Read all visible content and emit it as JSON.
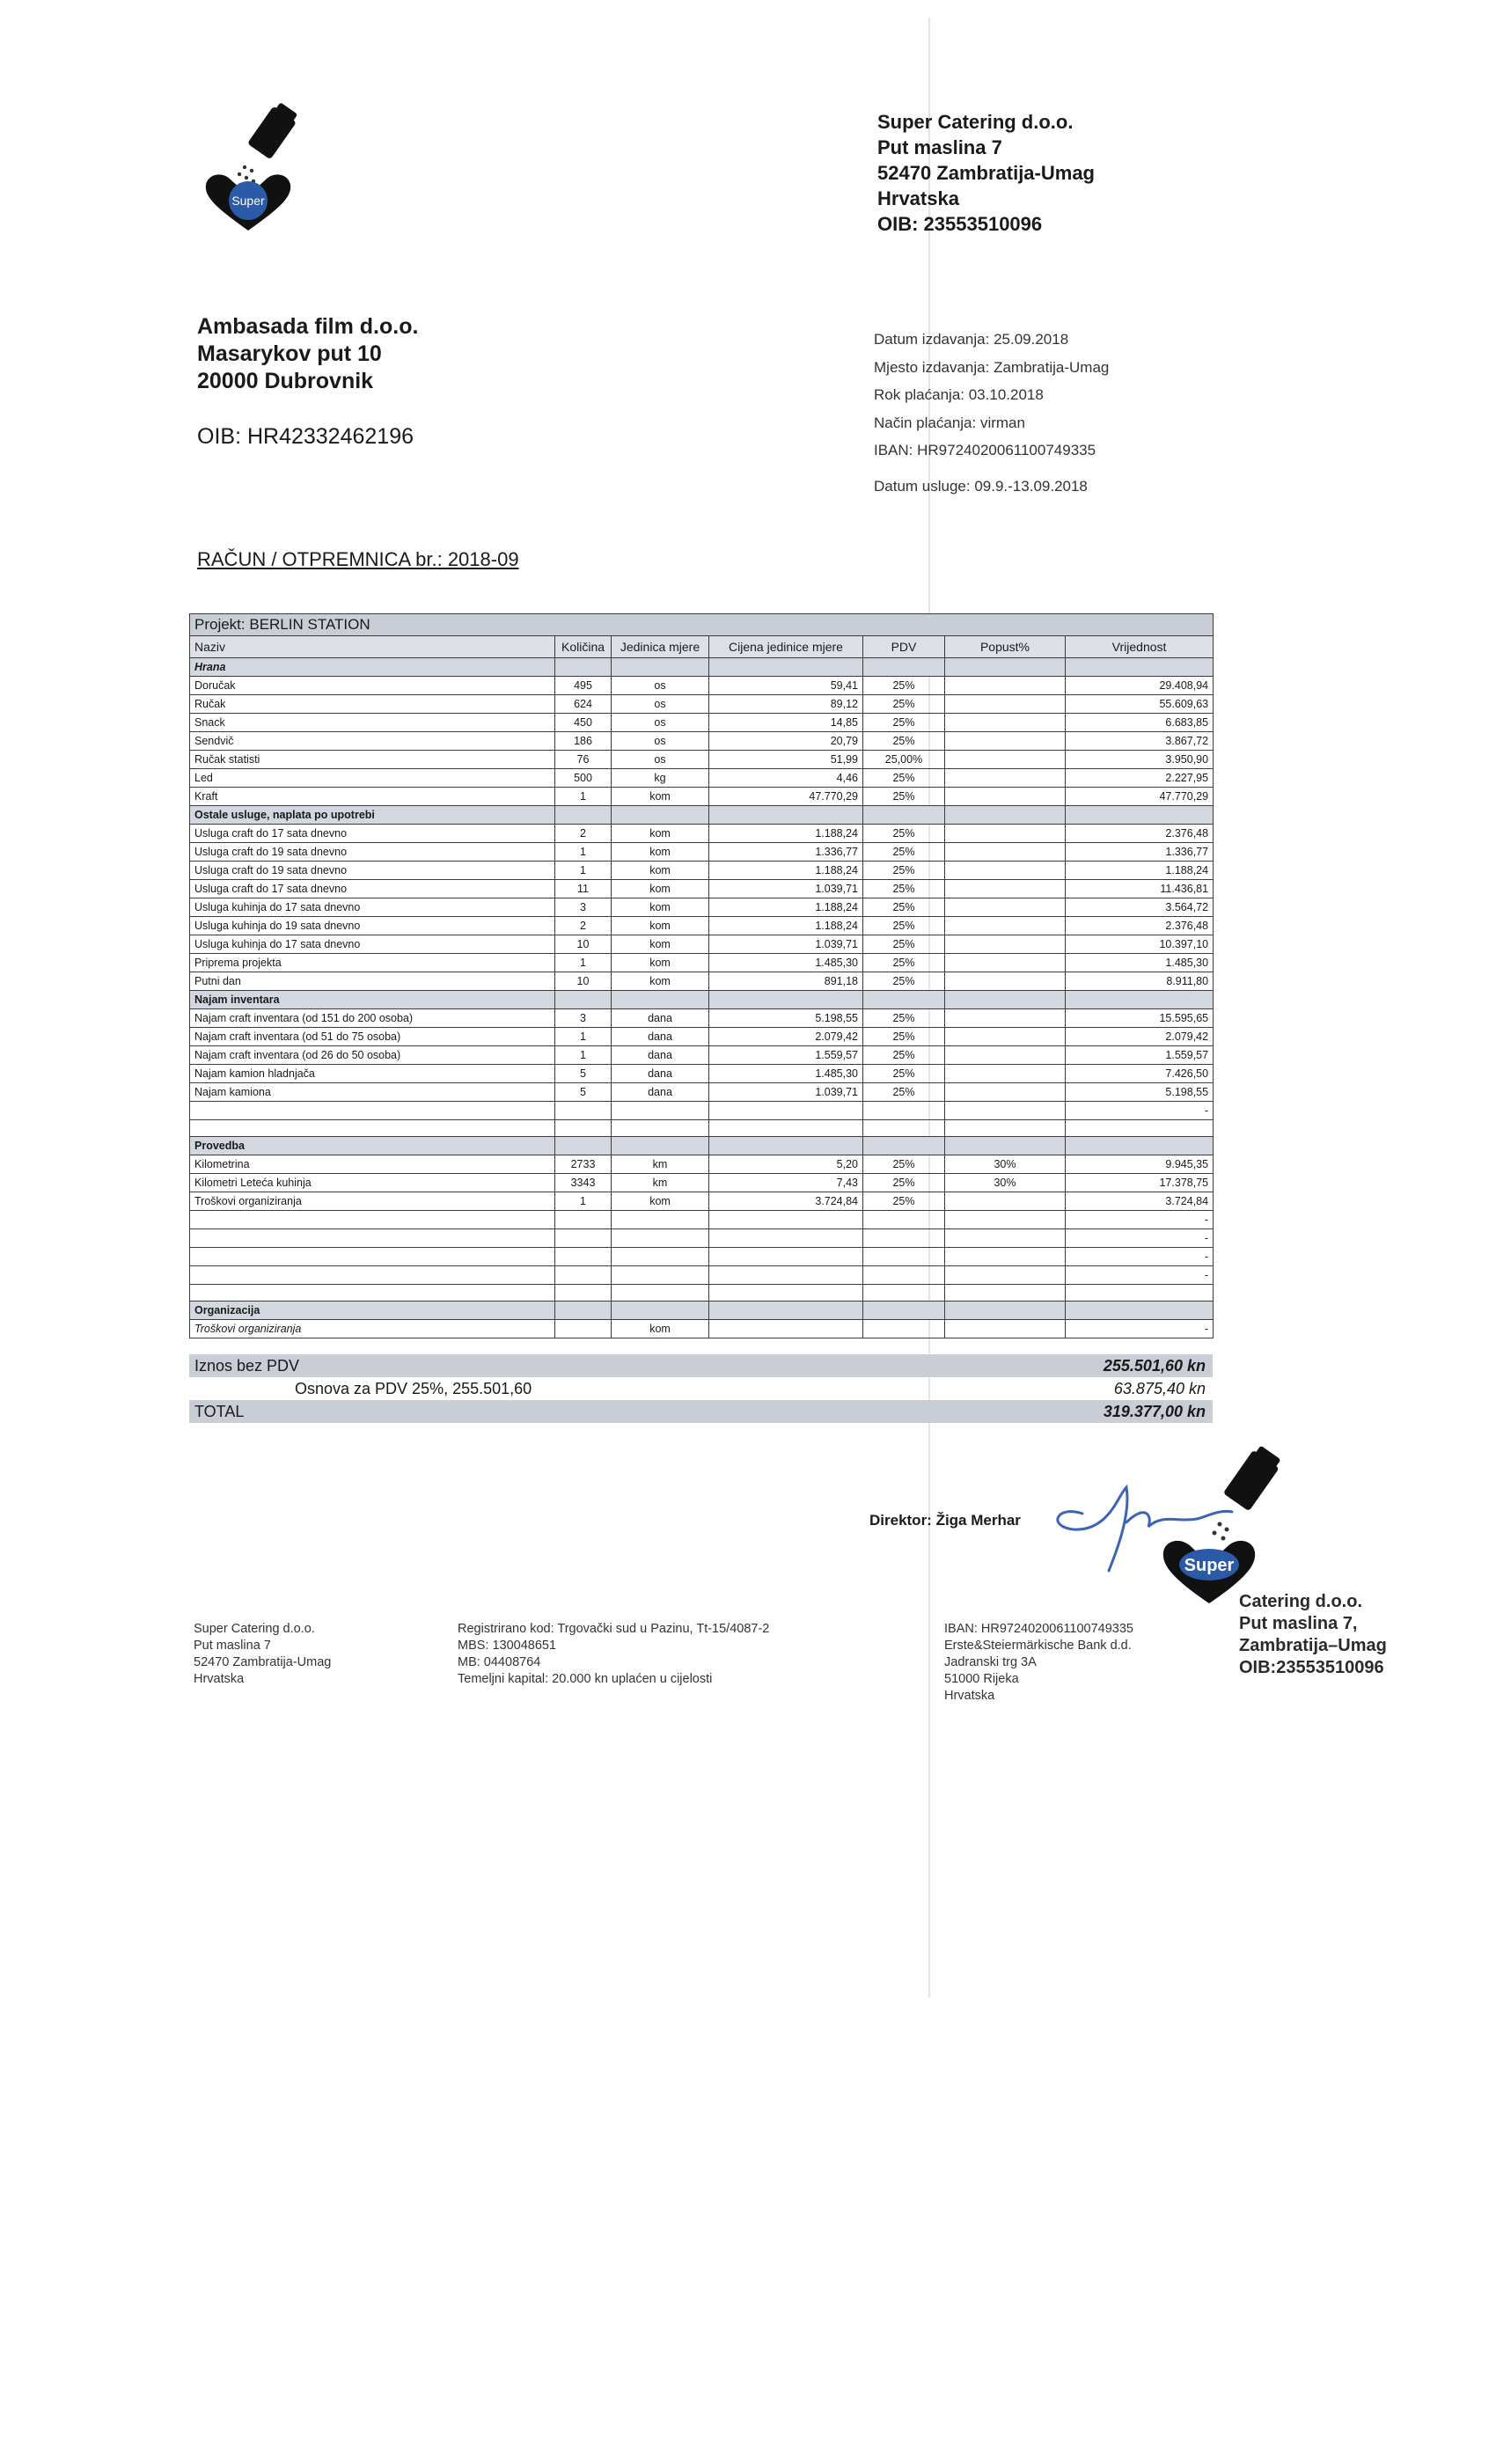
{
  "logo": {
    "text": "Super"
  },
  "seller": {
    "lines": [
      "Super Catering d.o.o.",
      "Put maslina 7",
      "52470 Zambratija-Umag",
      "Hrvatska",
      "OIB: 23553510096"
    ]
  },
  "buyer": {
    "lines": [
      "Ambasada film d.o.o.",
      "Masarykov put 10",
      "20000 Dubrovnik"
    ],
    "oib": "OIB: HR42332462196"
  },
  "details": [
    "Datum izdavanja: 25.09.2018",
    "Mjesto izdavanja: Zambratija-Umag",
    "Rok plaćanja: 03.10.2018",
    "Način plaćanja: virman",
    "IBAN: HR9724020061100749335"
  ],
  "service_date": "Datum usluge: 09.9.-13.09.2018",
  "title": "RAČUN / OTPREMNICA br.: 2018-09",
  "table": {
    "project": "Projekt: BERLIN STATION",
    "headers": [
      "Naziv",
      "Količina",
      "Jedinica mjere",
      "Cijena jedinice mjere",
      "PDV",
      "Popust%",
      "Vrijednost"
    ],
    "sections": [
      {
        "title": "Hrana",
        "rows": [
          {
            "name": "Doručak",
            "qty": "495",
            "unit": "os",
            "price": "59,41",
            "vat": "25%",
            "value": "29.408,94"
          },
          {
            "name": "Ručak",
            "qty": "624",
            "unit": "os",
            "price": "89,12",
            "vat": "25%",
            "value": "55.609,63"
          },
          {
            "name": "Snack",
            "qty": "450",
            "unit": "os",
            "price": "14,85",
            "vat": "25%",
            "value": "6.683,85"
          },
          {
            "name": "Sendvič",
            "qty": "186",
            "unit": "os",
            "price": "20,79",
            "vat": "25%",
            "value": "3.867,72"
          },
          {
            "name": "Ručak statisti",
            "qty": "76",
            "unit": "os",
            "price": "51,99",
            "vat": "25,00%",
            "value": "3.950,90"
          },
          {
            "name": "Led",
            "qty": "500",
            "unit": "kg",
            "price": "4,46",
            "vat": "25%",
            "value": "2.227,95"
          },
          {
            "name": "Kraft",
            "qty": "1",
            "unit": "kom",
            "price": "47.770,29",
            "vat": "25%",
            "value": "47.770,29"
          }
        ]
      },
      {
        "title": "Ostale usluge, naplata po upotrebi",
        "rows": [
          {
            "name": "Usluga craft do 17 sata dnevno",
            "qty": "2",
            "unit": "kom",
            "price": "1.188,24",
            "vat": "25%",
            "value": "2.376,48"
          },
          {
            "name": "Usluga craft do 19 sata dnevno",
            "qty": "1",
            "unit": "kom",
            "price": "1.336,77",
            "vat": "25%",
            "value": "1.336,77"
          },
          {
            "name": "Usluga craft do 19 sata dnevno",
            "qty": "1",
            "unit": "kom",
            "price": "1.188,24",
            "vat": "25%",
            "value": "1.188,24"
          },
          {
            "name": "Usluga craft do 17 sata dnevno",
            "qty": "11",
            "unit": "kom",
            "price": "1.039,71",
            "vat": "25%",
            "value": "11.436,81"
          },
          {
            "name": "Usluga kuhinja do 17 sata dnevno",
            "qty": "3",
            "unit": "kom",
            "price": "1.188,24",
            "vat": "25%",
            "value": "3.564,72"
          },
          {
            "name": "Usluga kuhinja do 19 sata dnevno",
            "qty": "2",
            "unit": "kom",
            "price": "1.188,24",
            "vat": "25%",
            "value": "2.376,48"
          },
          {
            "name": "Usluga kuhinja do 17 sata dnevno",
            "qty": "10",
            "unit": "kom",
            "price": "1.039,71",
            "vat": "25%",
            "value": "10.397,10"
          },
          {
            "name": "Priprema projekta",
            "qty": "1",
            "unit": "kom",
            "price": "1.485,30",
            "vat": "25%",
            "value": "1.485,30"
          },
          {
            "name": "Putni dan",
            "qty": "10",
            "unit": "kom",
            "price": "891,18",
            "vat": "25%",
            "value": "8.911,80"
          }
        ]
      },
      {
        "title": "Najam inventara",
        "rows": [
          {
            "name": "Najam craft inventara (od 151 do 200 osoba)",
            "qty": "3",
            "unit": "dana",
            "price": "5.198,55",
            "vat": "25%",
            "value": "15.595,65"
          },
          {
            "name": "Najam craft inventara (od 51 do 75 osoba)",
            "qty": "1",
            "unit": "dana",
            "price": "2.079,42",
            "vat": "25%",
            "value": "2.079,42"
          },
          {
            "name": "Najam craft inventara (od 26 do 50 osoba)",
            "qty": "1",
            "unit": "dana",
            "price": "1.559,57",
            "vat": "25%",
            "value": "1.559,57"
          },
          {
            "name": "Najam kamion hladnjača",
            "qty": "5",
            "unit": "dana",
            "price": "1.485,30",
            "vat": "25%",
            "value": "7.426,50"
          },
          {
            "name": "Najam kamiona",
            "qty": "5",
            "unit": "dana",
            "price": "1.039,71",
            "vat": "25%",
            "value": "5.198,55"
          },
          {
            "value": "-"
          }
        ]
      },
      {
        "title": "Provedba",
        "rows": [
          {
            "name": "Kilometrina",
            "qty": "2733",
            "unit": "km",
            "price": "5,20",
            "vat": "25%",
            "discount": "30%",
            "value": "9.945,35"
          },
          {
            "name": "Kilometri Leteća kuhinja",
            "qty": "3343",
            "unit": "km",
            "price": "7,43",
            "vat": "25%",
            "discount": "30%",
            "value": "17.378,75"
          },
          {
            "name": "Troškovi organiziranja",
            "qty": "1",
            "unit": "kom",
            "price": "3.724,84",
            "vat": "25%",
            "value": "3.724,84"
          },
          {
            "value": "-"
          },
          {
            "value": "-"
          },
          {
            "value": "-"
          },
          {
            "value": "-"
          }
        ]
      },
      {
        "title": "Organizacija",
        "rows": [
          {
            "name": "Troškovi organiziranja",
            "unit": "kom",
            "value": "-"
          }
        ]
      }
    ]
  },
  "totals": {
    "net_label": "Iznos bez PDV",
    "net": "255.501,60 kn",
    "base_label": "Osnova za PDV 25%,  255.501,60",
    "vat": "63.875,40 kn",
    "total_label": "TOTAL",
    "total": "319.377,00 kn"
  },
  "signature": "Direktor: Žiga Merhar",
  "stamp": {
    "logo": "Super",
    "lines": [
      "Catering d.o.o.",
      "Put maslina 7,",
      "Zambratija–Umag",
      "OIB:23553510096"
    ]
  },
  "footer": {
    "columns": [
      [
        "Super Catering d.o.o.",
        "Put maslina 7",
        "52470 Zambratija-Umag",
        "Hrvatska"
      ],
      [
        "Registrirano kod: Trgovački sud u Pazinu, Tt-15/4087-2",
        "MBS: 130048651",
        "MB: 04408764",
        "Temeljni kapital: 20.000 kn uplaćen u cijelosti"
      ],
      [
        "IBAN: HR9724020061100749335",
        "Erste&Steiermärkische Bank d.d.",
        "Jadranski trg 3A",
        "51000 Rijeka",
        "Hrvatska"
      ]
    ]
  }
}
